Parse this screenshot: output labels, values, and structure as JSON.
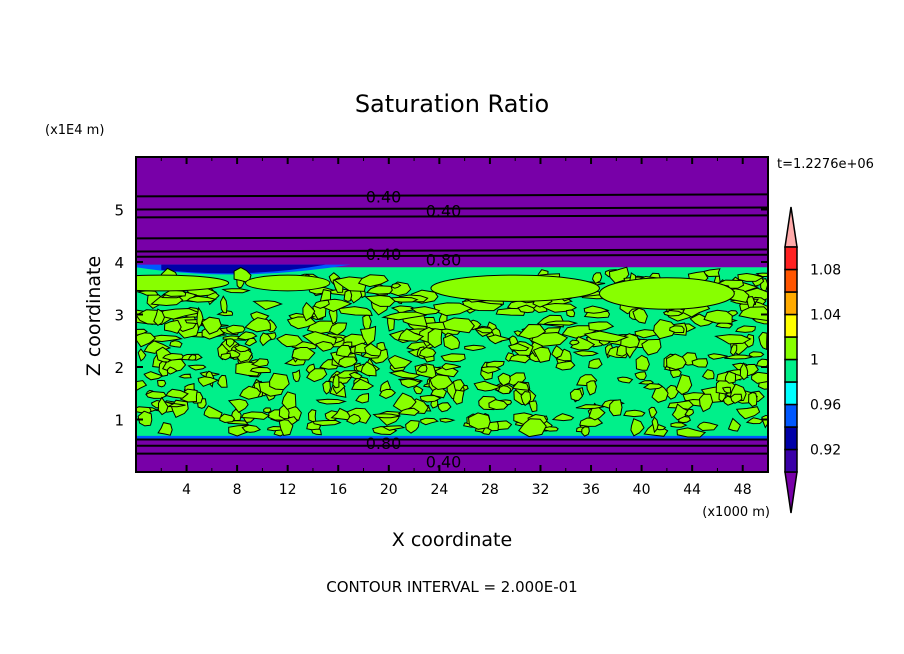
{
  "chart_data": {
    "type": "heatmap",
    "title": "Saturation Ratio",
    "xlabel": "X coordinate",
    "ylabel": "Z coordinate",
    "x_unit": "(x1000 m)",
    "y_unit": "(x1E4 m)",
    "time_label": "t=1.2276e+06",
    "footer": "CONTOUR INTERVAL = 2.000E-01",
    "xlim": [
      0,
      50
    ],
    "ylim": [
      0,
      6
    ],
    "xticks": [
      4,
      8,
      12,
      16,
      20,
      24,
      28,
      32,
      36,
      40,
      44,
      48
    ],
    "yticks": [
      1,
      2,
      3,
      4,
      5
    ],
    "colorbar": {
      "levels": [
        0.9,
        0.92,
        0.94,
        0.96,
        0.98,
        1.0,
        1.02,
        1.04,
        1.06,
        1.08,
        1.1
      ],
      "labels": [
        "0.92",
        "0.96",
        "1",
        "1.04",
        "1.08"
      ],
      "label_values": [
        0.92,
        0.96,
        1.0,
        1.04,
        1.08
      ],
      "colors": [
        "#3a00a8",
        "#0000a8",
        "#0058ff",
        "#00ffff",
        "#00f08a",
        "#88ff00",
        "#ffff00",
        "#ffaa00",
        "#ff5500",
        "#ff2222"
      ],
      "under_color": "#7800a8",
      "over_color": "#ffaaaa"
    },
    "cloud_layer_z": [
      0.65,
      3.9
    ],
    "contour_lines_z": [
      5.25,
      5.0,
      4.85,
      4.45,
      4.2,
      4.1,
      0.62,
      0.5,
      0.35
    ],
    "contour_labels": [
      {
        "text": "0.40",
        "x": 18,
        "z": 5.25
      },
      {
        "text": "0.40",
        "x": 18,
        "z": 4.98
      },
      {
        "text": "0.40",
        "x": 18,
        "z": 4.15
      },
      {
        "text": "0.80",
        "x": 18,
        "z": 4.05
      },
      {
        "text": "0.80",
        "x": 18,
        "z": 0.55
      },
      {
        "text": "0.40",
        "x": 18,
        "z": 0.2
      }
    ]
  }
}
